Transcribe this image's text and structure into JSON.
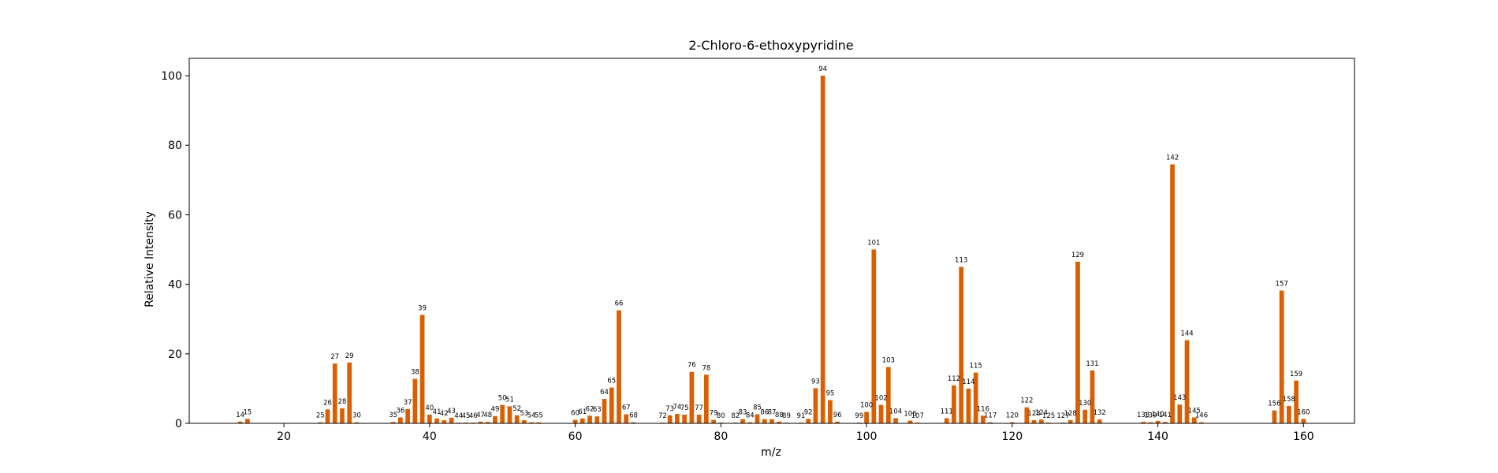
{
  "chart_data": {
    "type": "bar",
    "title": "2-Chloro-6-ethoxypyridine",
    "xlabel": "m/z",
    "ylabel": "Relative Intensity",
    "xlim": [
      7,
      167
    ],
    "ylim": [
      0,
      105
    ],
    "xticks": [
      20,
      40,
      60,
      80,
      100,
      120,
      140,
      160
    ],
    "yticks": [
      0,
      20,
      40,
      60,
      80,
      100
    ],
    "bar_color": "#d95f02",
    "grid": false,
    "peaks": [
      {
        "mz": 14,
        "intensity": 0.5
      },
      {
        "mz": 15,
        "intensity": 1.3
      },
      {
        "mz": 25,
        "intensity": 0.3
      },
      {
        "mz": 26,
        "intensity": 4.0
      },
      {
        "mz": 27,
        "intensity": 17.2
      },
      {
        "mz": 28,
        "intensity": 4.3
      },
      {
        "mz": 29,
        "intensity": 17.5
      },
      {
        "mz": 30,
        "intensity": 0.3
      },
      {
        "mz": 35,
        "intensity": 0.4
      },
      {
        "mz": 36,
        "intensity": 1.7
      },
      {
        "mz": 37,
        "intensity": 4.1
      },
      {
        "mz": 38,
        "intensity": 12.8
      },
      {
        "mz": 39,
        "intensity": 31.2
      },
      {
        "mz": 40,
        "intensity": 2.5
      },
      {
        "mz": 41,
        "intensity": 1.4
      },
      {
        "mz": 42,
        "intensity": 0.9
      },
      {
        "mz": 43,
        "intensity": 1.6
      },
      {
        "mz": 44,
        "intensity": 0.2
      },
      {
        "mz": 45,
        "intensity": 0.2
      },
      {
        "mz": 46,
        "intensity": 0.2
      },
      {
        "mz": 47,
        "intensity": 0.5
      },
      {
        "mz": 48,
        "intensity": 0.4
      },
      {
        "mz": 49,
        "intensity": 2.1
      },
      {
        "mz": 50,
        "intensity": 5.3
      },
      {
        "mz": 51,
        "intensity": 4.9
      },
      {
        "mz": 52,
        "intensity": 2.3
      },
      {
        "mz": 53,
        "intensity": 0.9
      },
      {
        "mz": 54,
        "intensity": 0.3
      },
      {
        "mz": 55,
        "intensity": 0.3
      },
      {
        "mz": 60,
        "intensity": 1.0
      },
      {
        "mz": 61,
        "intensity": 1.4
      },
      {
        "mz": 62,
        "intensity": 2.2
      },
      {
        "mz": 63,
        "intensity": 2.0
      },
      {
        "mz": 64,
        "intensity": 7.0
      },
      {
        "mz": 65,
        "intensity": 10.3
      },
      {
        "mz": 66,
        "intensity": 32.5
      },
      {
        "mz": 67,
        "intensity": 2.6
      },
      {
        "mz": 68,
        "intensity": 0.3
      },
      {
        "mz": 72,
        "intensity": 0.2
      },
      {
        "mz": 73,
        "intensity": 2.3
      },
      {
        "mz": 74,
        "intensity": 2.7
      },
      {
        "mz": 75,
        "intensity": 2.5
      },
      {
        "mz": 76,
        "intensity": 14.8
      },
      {
        "mz": 77,
        "intensity": 2.5
      },
      {
        "mz": 78,
        "intensity": 14.0
      },
      {
        "mz": 79,
        "intensity": 1.0
      },
      {
        "mz": 80,
        "intensity": 0.2
      },
      {
        "mz": 82,
        "intensity": 0.2
      },
      {
        "mz": 83,
        "intensity": 1.2
      },
      {
        "mz": 84,
        "intensity": 0.3
      },
      {
        "mz": 85,
        "intensity": 2.6
      },
      {
        "mz": 86,
        "intensity": 1.2
      },
      {
        "mz": 87,
        "intensity": 1.2
      },
      {
        "mz": 88,
        "intensity": 0.5
      },
      {
        "mz": 89,
        "intensity": 0.2
      },
      {
        "mz": 91,
        "intensity": 0.2
      },
      {
        "mz": 92,
        "intensity": 1.3
      },
      {
        "mz": 93,
        "intensity": 10.1
      },
      {
        "mz": 94,
        "intensity": 100.0
      },
      {
        "mz": 95,
        "intensity": 6.7
      },
      {
        "mz": 96,
        "intensity": 0.5
      },
      {
        "mz": 99,
        "intensity": 0.2
      },
      {
        "mz": 100,
        "intensity": 3.3
      },
      {
        "mz": 101,
        "intensity": 50.0
      },
      {
        "mz": 102,
        "intensity": 5.3
      },
      {
        "mz": 103,
        "intensity": 16.2
      },
      {
        "mz": 104,
        "intensity": 1.5
      },
      {
        "mz": 106,
        "intensity": 0.8
      },
      {
        "mz": 107,
        "intensity": 0.2
      },
      {
        "mz": 111,
        "intensity": 1.5
      },
      {
        "mz": 112,
        "intensity": 10.9
      },
      {
        "mz": 113,
        "intensity": 45.0
      },
      {
        "mz": 114,
        "intensity": 10.0
      },
      {
        "mz": 115,
        "intensity": 14.6
      },
      {
        "mz": 116,
        "intensity": 2.2
      },
      {
        "mz": 117,
        "intensity": 0.3
      },
      {
        "mz": 120,
        "intensity": 0.3
      },
      {
        "mz": 122,
        "intensity": 4.6
      },
      {
        "mz": 123,
        "intensity": 0.9
      },
      {
        "mz": 124,
        "intensity": 1.1
      },
      {
        "mz": 125,
        "intensity": 0.2
      },
      {
        "mz": 127,
        "intensity": 0.2
      },
      {
        "mz": 128,
        "intensity": 0.9
      },
      {
        "mz": 129,
        "intensity": 46.5
      },
      {
        "mz": 130,
        "intensity": 3.9
      },
      {
        "mz": 131,
        "intensity": 15.2
      },
      {
        "mz": 132,
        "intensity": 1.1
      },
      {
        "mz": 138,
        "intensity": 0.4
      },
      {
        "mz": 139,
        "intensity": 0.3
      },
      {
        "mz": 140,
        "intensity": 0.7
      },
      {
        "mz": 141,
        "intensity": 0.4
      },
      {
        "mz": 142,
        "intensity": 74.5
      },
      {
        "mz": 143,
        "intensity": 5.4
      },
      {
        "mz": 144,
        "intensity": 23.9
      },
      {
        "mz": 145,
        "intensity": 1.7
      },
      {
        "mz": 146,
        "intensity": 0.3
      },
      {
        "mz": 156,
        "intensity": 3.7
      },
      {
        "mz": 157,
        "intensity": 38.2
      },
      {
        "mz": 158,
        "intensity": 5.0
      },
      {
        "mz": 159,
        "intensity": 12.3
      },
      {
        "mz": 160,
        "intensity": 1.3
      }
    ]
  }
}
